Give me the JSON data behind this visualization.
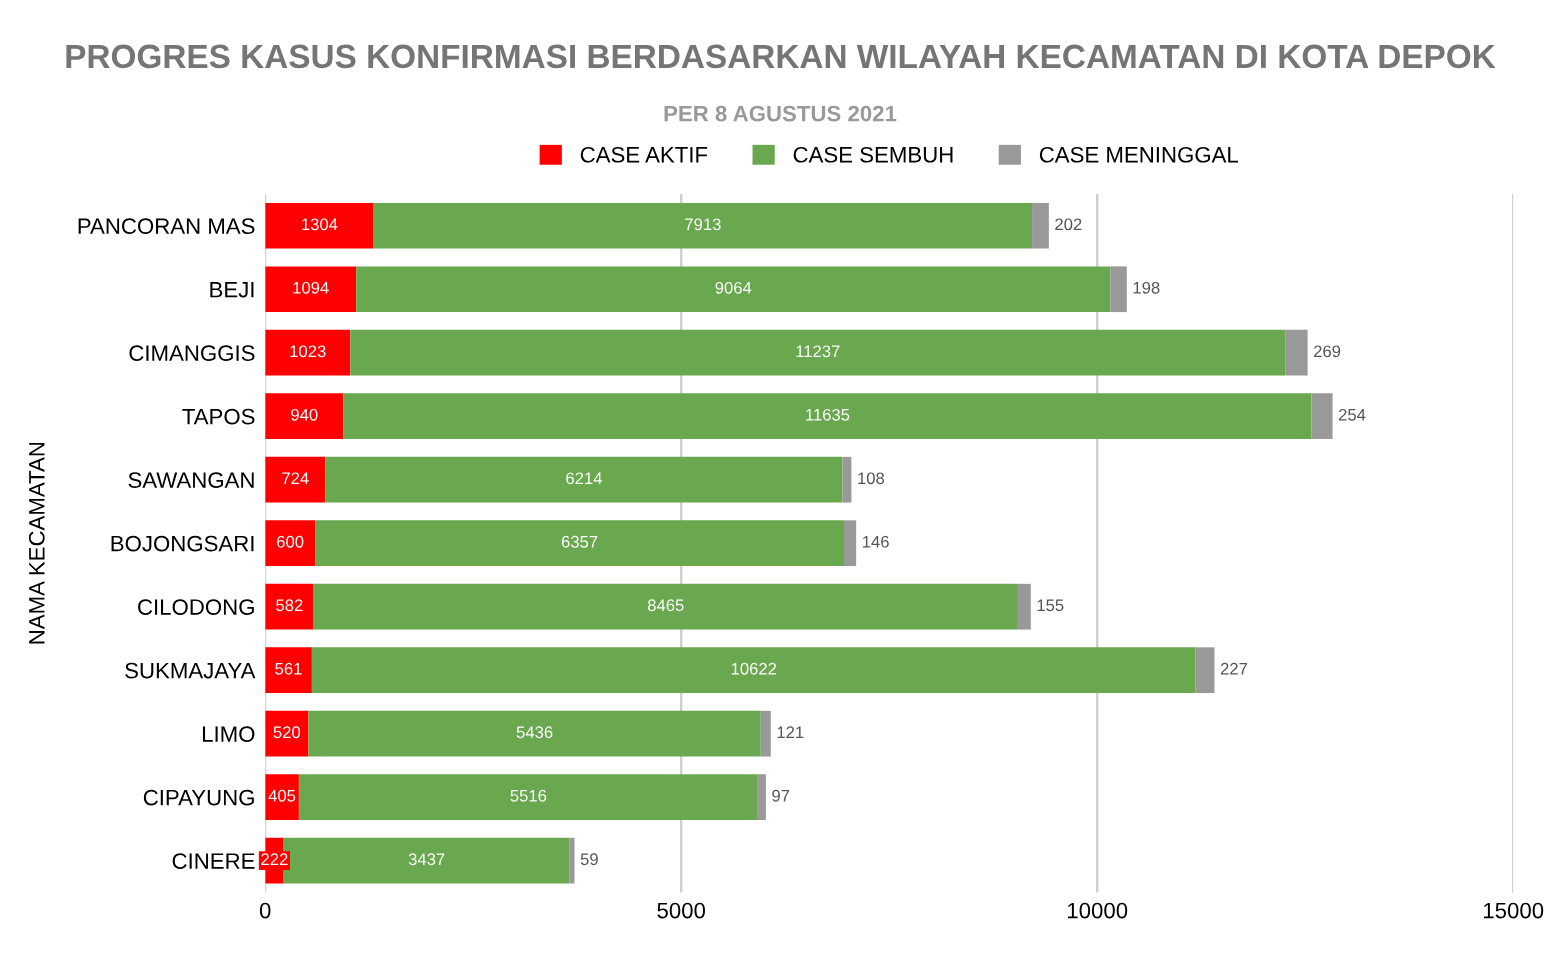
{
  "chart_data": {
    "type": "bar",
    "orientation": "horizontal",
    "stacked": true,
    "title": "PROGRES KASUS KONFIRMASI BERDASARKAN WILAYAH KECAMATAN DI KOTA DEPOK",
    "subtitle": "PER 8 AGUSTUS 2021",
    "ylabel": "NAMA KECAMATAN",
    "categories": [
      "PANCORAN MAS",
      "BEJI",
      "CIMANGGIS",
      "TAPOS",
      "SAWANGAN",
      "BOJONGSARI",
      "CILODONG",
      "SUKMAJAYA",
      "LIMO",
      "CIPAYUNG",
      "CINERE"
    ],
    "series": [
      {
        "name": "CASE AKTIF",
        "color": "#ff0000",
        "values": [
          1304,
          1094,
          1023,
          940,
          724,
          600,
          582,
          561,
          520,
          405,
          222
        ]
      },
      {
        "name": "CASE SEMBUH",
        "color": "#6aa84f",
        "values": [
          7913,
          9064,
          11237,
          11635,
          6214,
          6357,
          8465,
          10622,
          5436,
          5516,
          3437
        ]
      },
      {
        "name": "CASE MENINGGAL",
        "color": "#999999",
        "values": [
          202,
          198,
          269,
          254,
          108,
          146,
          155,
          227,
          121,
          97,
          59
        ]
      }
    ],
    "xlim": [
      0,
      15000
    ],
    "xticks": [
      0,
      5000,
      10000,
      15000
    ],
    "grid": "x",
    "legend": "top",
    "data_labels": true
  }
}
